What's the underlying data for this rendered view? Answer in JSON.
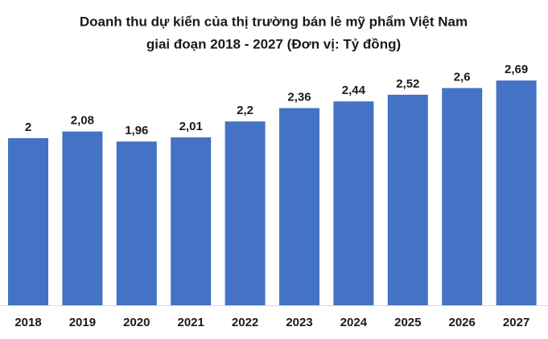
{
  "chart_data": {
    "type": "bar",
    "title": [
      "Doanh thu dự kiến của thị trường bán lẻ mỹ phẩm Việt Nam",
      "giai đoạn 2018 - 2027 (Đơn vị: Tỷ đồng)"
    ],
    "categories": [
      "2018",
      "2019",
      "2020",
      "2021",
      "2022",
      "2023",
      "2024",
      "2025",
      "2026",
      "2027"
    ],
    "values": [
      2,
      2.08,
      1.96,
      2.01,
      2.2,
      2.36,
      2.44,
      2.52,
      2.6,
      2.69
    ],
    "value_labels": [
      "2",
      "2,08",
      "1,96",
      "2,01",
      "2,2",
      "2,36",
      "2,44",
      "2,52",
      "2,6",
      "2,69"
    ],
    "color": "#4472c4"
  }
}
